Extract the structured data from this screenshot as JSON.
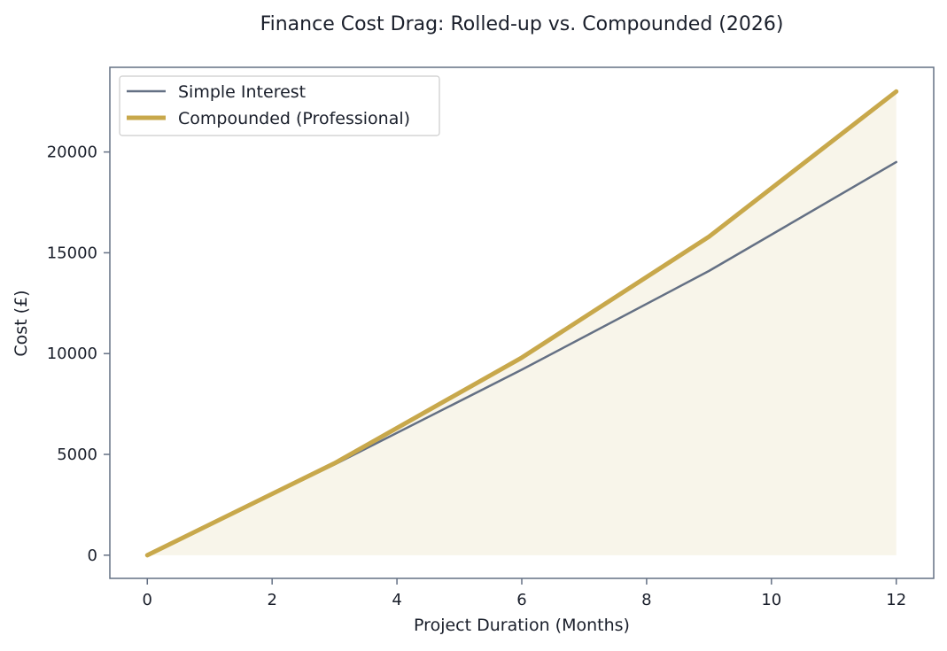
{
  "chart_data": {
    "type": "line",
    "title": "Finance Cost Drag: Rolled-up vs. Compounded (2026)",
    "xlabel": "Project Duration (Months)",
    "ylabel": "Cost (£)",
    "xlim": [
      -0.6,
      12.6
    ],
    "ylim": [
      -1150,
      24200
    ],
    "x_ticks": [
      0,
      2,
      4,
      6,
      8,
      10,
      12
    ],
    "y_ticks": [
      0,
      5000,
      10000,
      15000,
      20000
    ],
    "grid": false,
    "legend_position": "top-left",
    "x": [
      0,
      3,
      6,
      9,
      12
    ],
    "series": [
      {
        "name": "Simple Interest",
        "values": [
          0,
          4500,
          9200,
          14100,
          19500
        ],
        "color": "#647084",
        "style": "thin"
      },
      {
        "name": "Compounded (Professional)",
        "values": [
          0,
          4560,
          9800,
          15800,
          23000
        ],
        "color": "#c8a84b",
        "style": "thick",
        "fill_under": true,
        "fill_color": "#f8f5ea"
      }
    ],
    "frame_color": "#647084"
  }
}
